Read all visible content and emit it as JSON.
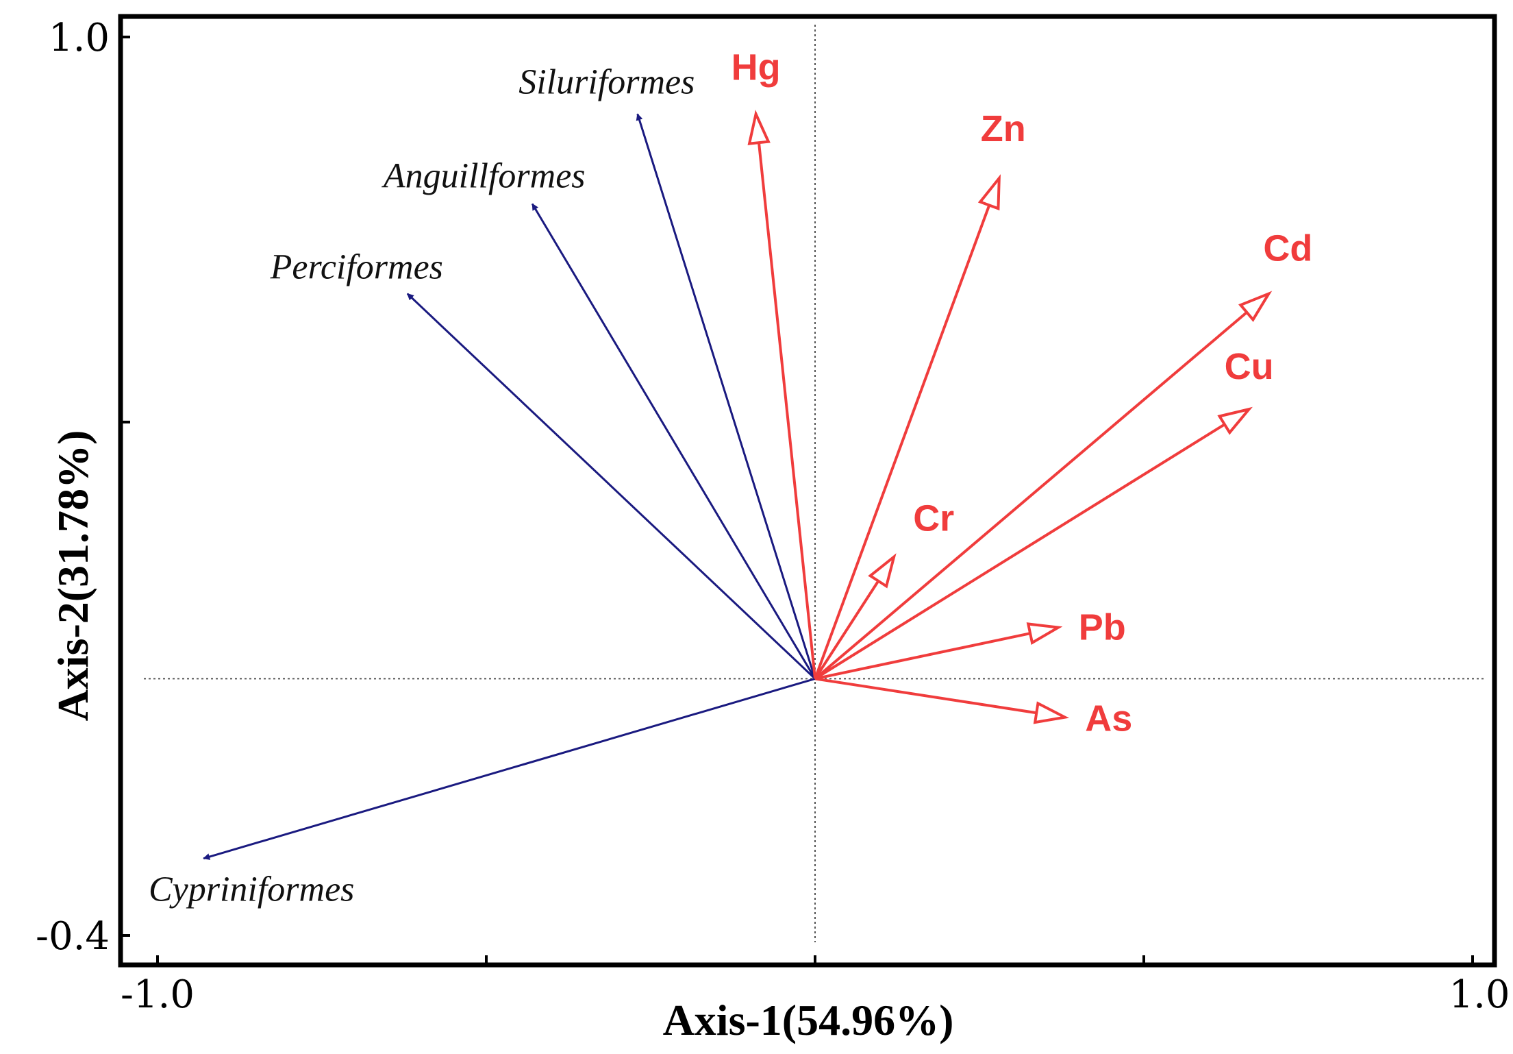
{
  "chart_data": {
    "type": "biplot",
    "xlabel": "Axis-1(54.96%)",
    "ylabel": "Axis-2(31.78%)",
    "xlim": [
      -1.0,
      1.0
    ],
    "ylim": [
      -0.4,
      1.0
    ],
    "x_tick_labels": [
      {
        "value": -1.0,
        "label": "-1.0"
      },
      {
        "value": 1.0,
        "label": "1.0"
      }
    ],
    "y_tick_labels": [
      {
        "value": 1.0,
        "label": "1.0"
      },
      {
        "value": -0.4,
        "label": "-0.4"
      }
    ],
    "x_minor_ticks": [
      -0.5,
      0.0,
      0.5
    ],
    "y_minor_ticks": [
      0.4
    ],
    "reference_lines": {
      "x": 0.0,
      "y": 0.0,
      "style": "dotted"
    },
    "species": {
      "color": "#1a1a80",
      "items": [
        {
          "name": "Siluriformes",
          "x": -0.27,
          "y": 0.88
        },
        {
          "name": "Anguillformes",
          "x": -0.43,
          "y": 0.74
        },
        {
          "name": "Perciformes",
          "x": -0.62,
          "y": 0.6
        },
        {
          "name": "Cypriniformes",
          "x": -0.93,
          "y": -0.28
        }
      ]
    },
    "metals": {
      "color": "#f03c3c",
      "items": [
        {
          "name": "Hg",
          "x": -0.09,
          "y": 0.88
        },
        {
          "name": "Zn",
          "x": 0.28,
          "y": 0.78
        },
        {
          "name": "Cd",
          "x": 0.69,
          "y": 0.6
        },
        {
          "name": "Cu",
          "x": 0.66,
          "y": 0.42
        },
        {
          "name": "Cr",
          "x": 0.12,
          "y": 0.19
        },
        {
          "name": "Pb",
          "x": 0.37,
          "y": 0.08
        },
        {
          "name": "As",
          "x": 0.38,
          "y": -0.06
        }
      ]
    }
  }
}
